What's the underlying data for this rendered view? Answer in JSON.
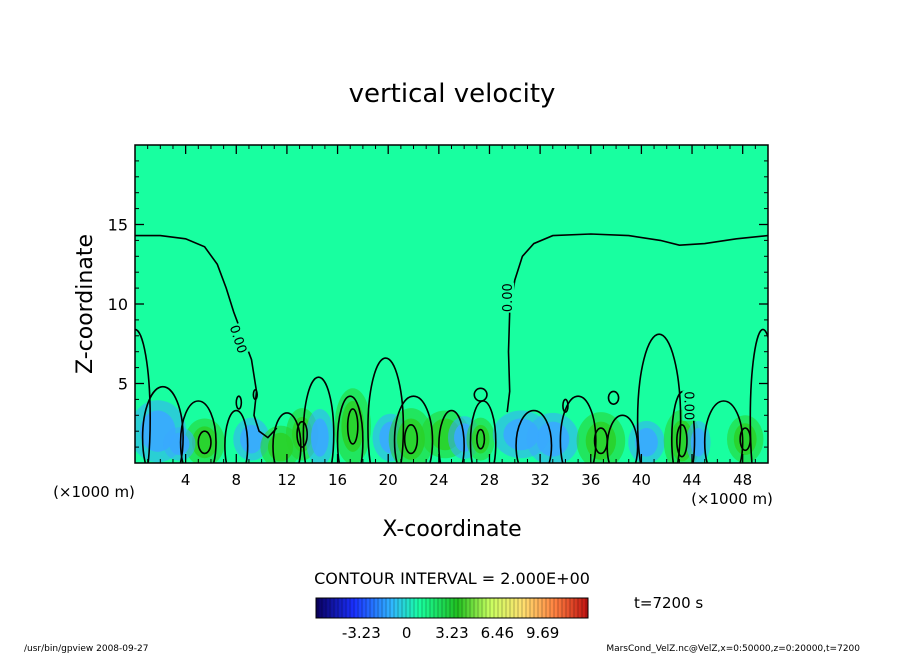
{
  "chart_data": {
    "type": "contour",
    "title": "vertical velocity",
    "xlabel": "X-coordinate",
    "ylabel": "Z-coordinate",
    "x_unit_left": "(×1000 m)",
    "x_unit_right": "(×1000 m)",
    "xlim": [
      0,
      50
    ],
    "ylim": [
      0,
      20
    ],
    "x_ticks": [
      "4",
      "8",
      "12",
      "16",
      "20",
      "24",
      "28",
      "32",
      "36",
      "40",
      "44",
      "48"
    ],
    "x_tick_values": [
      4,
      8,
      12,
      16,
      20,
      24,
      28,
      32,
      36,
      40,
      44,
      48
    ],
    "y_ticks": [
      "5",
      "10",
      "15"
    ],
    "y_tick_values": [
      5,
      10,
      15
    ],
    "contour_interval_label": "CONTOUR INTERVAL = 2.000E+00",
    "contour_labels": [
      "0.00",
      "0.00",
      "0.00"
    ],
    "zero_contour_top": [
      [
        0,
        14.3
      ],
      [
        2,
        14.3
      ],
      [
        4,
        14.1
      ],
      [
        5.5,
        13.6
      ],
      [
        6.5,
        12.5
      ],
      [
        7.2,
        11.0
      ],
      [
        7.8,
        9.5
      ],
      [
        8.5,
        8.0
      ],
      [
        9.2,
        6.5
      ],
      [
        9.6,
        4.5
      ],
      [
        9.4,
        3.0
      ],
      [
        9.8,
        2.0
      ],
      [
        10.5,
        1.6
      ],
      [
        11.2,
        2.2
      ],
      [
        29.4,
        3.2
      ],
      [
        29.6,
        4.5
      ],
      [
        29.5,
        7.0
      ],
      [
        29.6,
        9.5
      ],
      [
        30.0,
        11.5
      ],
      [
        30.6,
        13.0
      ],
      [
        31.5,
        13.8
      ],
      [
        33,
        14.3
      ],
      [
        36,
        14.4
      ],
      [
        39,
        14.3
      ],
      [
        41.5,
        14.0
      ],
      [
        43,
        13.7
      ],
      [
        45,
        13.8
      ],
      [
        47.5,
        14.1
      ],
      [
        50,
        14.3
      ]
    ],
    "colorbar": {
      "tick_labels": [
        "-3.23",
        "0",
        "3.23",
        "6.46",
        "9.69"
      ],
      "tick_values": [
        -3.23,
        0,
        3.23,
        6.46,
        9.69
      ],
      "range": [
        -6.46,
        12.92
      ]
    },
    "annotation": "t=7200 s"
  },
  "footer": {
    "left": "/usr/bin/gpview   2008-09-27",
    "right": "MarsCond_VelZ.nc@VelZ,x=0:50000,z=0:20000,t=7200"
  },
  "colors": {
    "background_field": "#18ffa0",
    "positive_cell": "#2ad22a",
    "negative_cell": "#3aa8ff",
    "contour_line": "#000000"
  }
}
